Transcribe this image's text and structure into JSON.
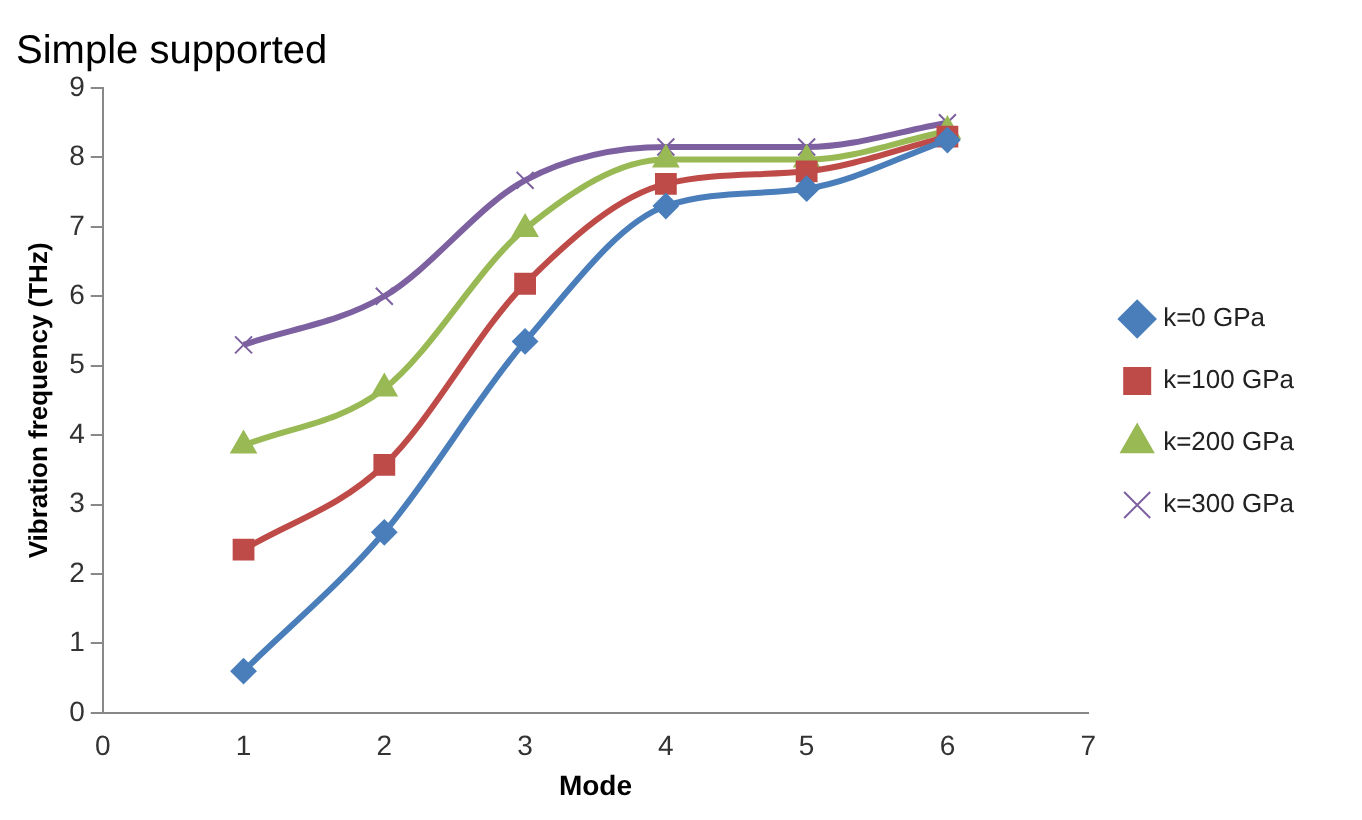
{
  "chart_data": {
    "type": "line",
    "title": "Simple supported",
    "xlabel": "Mode",
    "ylabel": "Vibration frequency (THz)",
    "x": [
      1,
      2,
      3,
      4,
      5,
      6
    ],
    "series": [
      {
        "name": "k=0 GPa",
        "color": "#4a7ebb",
        "marker": "diamond",
        "values": [
          0.6,
          2.6,
          5.35,
          7.3,
          7.55,
          8.25
        ]
      },
      {
        "name": "k=100 GPa",
        "color": "#be4b48",
        "marker": "square",
        "values": [
          2.35,
          3.57,
          6.18,
          7.62,
          7.8,
          8.3
        ]
      },
      {
        "name": "k=200 GPa",
        "color": "#98b954",
        "marker": "triangle",
        "values": [
          3.85,
          4.67,
          6.97,
          7.97,
          7.97,
          8.38
        ]
      },
      {
        "name": "k=300 GPa",
        "color": "#7d60a0",
        "marker": "cross",
        "values": [
          5.3,
          6.0,
          7.67,
          8.15,
          8.15,
          8.5
        ]
      }
    ],
    "xlim": [
      0,
      7
    ],
    "xticks": [
      0,
      1,
      2,
      3,
      4,
      5,
      6,
      7
    ],
    "ylim": [
      0,
      9
    ],
    "yticks": [
      0,
      1,
      2,
      3,
      4,
      5,
      6,
      7,
      8,
      9
    ],
    "grid": false,
    "legend": "right"
  }
}
